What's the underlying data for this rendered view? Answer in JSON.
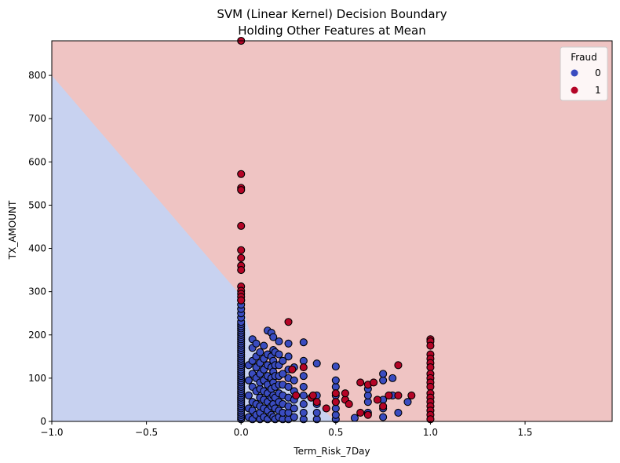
{
  "chart_data": {
    "type": "scatter",
    "title": "SVM (Linear Kernel) Decision Boundary",
    "subtitle": "Holding Other Features at Mean",
    "xlabel": "Term_Risk_7Day",
    "ylabel": "TX_AMOUNT",
    "xlim": [
      -1.0,
      1.96
    ],
    "ylim": [
      0,
      880
    ],
    "xticks": [
      -1.0,
      -0.5,
      0.0,
      0.5,
      1.0,
      1.5
    ],
    "xtick_labels": [
      "−1.0",
      "−0.5",
      "0.0",
      "0.5",
      "1.0",
      "1.5"
    ],
    "yticks": [
      0,
      100,
      200,
      300,
      400,
      500,
      600,
      700,
      800
    ],
    "ytick_labels": [
      "0",
      "100",
      "200",
      "300",
      "400",
      "500",
      "600",
      "700",
      "800"
    ],
    "grid": false,
    "decision_boundary": {
      "line": [
        [
          -1.0,
          800
        ],
        [
          0.0,
          290
        ],
        [
          0.03,
          230
        ],
        [
          0.05,
          200
        ],
        [
          0.1,
          140
        ],
        [
          0.2,
          80
        ],
        [
          0.3,
          70
        ],
        [
          0.35,
          65
        ],
        [
          0.45,
          20
        ],
        [
          0.5,
          0
        ]
      ],
      "class_0_region": "lower-left",
      "class_1_region": "upper-right",
      "class_0_color": "#c8d2f0",
      "class_1_color": "#efc4c3"
    },
    "legend": {
      "title": "Fraud",
      "placement": "top-right",
      "entries": [
        {
          "label": "0",
          "color": "#3a4cc0"
        },
        {
          "label": "1",
          "color": "#b40426"
        }
      ]
    },
    "series": [
      {
        "name": "0",
        "color": "#3a4cc0",
        "points": [
          [
            0.0,
            5
          ],
          [
            0.0,
            10
          ],
          [
            0.0,
            15
          ],
          [
            0.0,
            20
          ],
          [
            0.0,
            25
          ],
          [
            0.0,
            30
          ],
          [
            0.0,
            35
          ],
          [
            0.0,
            40
          ],
          [
            0.0,
            45
          ],
          [
            0.0,
            50
          ],
          [
            0.0,
            55
          ],
          [
            0.0,
            60
          ],
          [
            0.0,
            65
          ],
          [
            0.0,
            70
          ],
          [
            0.0,
            75
          ],
          [
            0.0,
            80
          ],
          [
            0.0,
            85
          ],
          [
            0.0,
            90
          ],
          [
            0.0,
            95
          ],
          [
            0.0,
            100
          ],
          [
            0.0,
            105
          ],
          [
            0.0,
            110
          ],
          [
            0.0,
            115
          ],
          [
            0.0,
            120
          ],
          [
            0.0,
            125
          ],
          [
            0.0,
            130
          ],
          [
            0.0,
            135
          ],
          [
            0.0,
            140
          ],
          [
            0.0,
            145
          ],
          [
            0.0,
            150
          ],
          [
            0.0,
            155
          ],
          [
            0.0,
            160
          ],
          [
            0.0,
            165
          ],
          [
            0.0,
            170
          ],
          [
            0.0,
            175
          ],
          [
            0.0,
            180
          ],
          [
            0.0,
            185
          ],
          [
            0.0,
            190
          ],
          [
            0.0,
            195
          ],
          [
            0.0,
            200
          ],
          [
            0.0,
            205
          ],
          [
            0.0,
            210
          ],
          [
            0.0,
            215
          ],
          [
            0.0,
            220
          ],
          [
            0.0,
            225
          ],
          [
            0.0,
            230
          ],
          [
            0.0,
            240
          ],
          [
            0.0,
            250
          ],
          [
            0.0,
            260
          ],
          [
            0.0,
            270
          ],
          [
            0.0,
            280
          ],
          [
            0.04,
            10
          ],
          [
            0.04,
            30
          ],
          [
            0.04,
            60
          ],
          [
            0.04,
            95
          ],
          [
            0.04,
            130
          ],
          [
            0.06,
            5
          ],
          [
            0.06,
            25
          ],
          [
            0.06,
            45
          ],
          [
            0.06,
            80
          ],
          [
            0.06,
            110
          ],
          [
            0.06,
            140
          ],
          [
            0.06,
            170
          ],
          [
            0.06,
            190
          ],
          [
            0.08,
            15
          ],
          [
            0.08,
            40
          ],
          [
            0.08,
            70
          ],
          [
            0.08,
            100
          ],
          [
            0.08,
            125
          ],
          [
            0.08,
            150
          ],
          [
            0.08,
            180
          ],
          [
            0.1,
            5
          ],
          [
            0.1,
            20
          ],
          [
            0.1,
            35
          ],
          [
            0.1,
            55
          ],
          [
            0.1,
            75
          ],
          [
            0.1,
            90
          ],
          [
            0.1,
            110
          ],
          [
            0.1,
            135
          ],
          [
            0.1,
            160
          ],
          [
            0.12,
            10
          ],
          [
            0.12,
            30
          ],
          [
            0.12,
            50
          ],
          [
            0.12,
            70
          ],
          [
            0.12,
            95
          ],
          [
            0.12,
            120
          ],
          [
            0.12,
            145
          ],
          [
            0.12,
            175
          ],
          [
            0.14,
            5
          ],
          [
            0.14,
            25
          ],
          [
            0.14,
            45
          ],
          [
            0.14,
            65
          ],
          [
            0.14,
            85
          ],
          [
            0.14,
            105
          ],
          [
            0.14,
            130
          ],
          [
            0.14,
            155
          ],
          [
            0.14,
            210
          ],
          [
            0.16,
            15
          ],
          [
            0.16,
            35
          ],
          [
            0.16,
            55
          ],
          [
            0.16,
            75
          ],
          [
            0.16,
            100
          ],
          [
            0.16,
            125
          ],
          [
            0.16,
            150
          ],
          [
            0.16,
            205
          ],
          [
            0.17,
            10
          ],
          [
            0.17,
            40
          ],
          [
            0.17,
            60
          ],
          [
            0.17,
            90
          ],
          [
            0.17,
            115
          ],
          [
            0.17,
            140
          ],
          [
            0.17,
            165
          ],
          [
            0.17,
            195
          ],
          [
            0.18,
            5
          ],
          [
            0.18,
            30
          ],
          [
            0.18,
            55
          ],
          [
            0.18,
            80
          ],
          [
            0.18,
            105
          ],
          [
            0.18,
            130
          ],
          [
            0.18,
            160
          ],
          [
            0.2,
            10
          ],
          [
            0.2,
            25
          ],
          [
            0.2,
            45
          ],
          [
            0.2,
            65
          ],
          [
            0.2,
            85
          ],
          [
            0.2,
            105
          ],
          [
            0.2,
            130
          ],
          [
            0.2,
            155
          ],
          [
            0.2,
            185
          ],
          [
            0.22,
            5
          ],
          [
            0.22,
            20
          ],
          [
            0.22,
            40
          ],
          [
            0.22,
            60
          ],
          [
            0.22,
            85
          ],
          [
            0.22,
            110
          ],
          [
            0.22,
            140
          ],
          [
            0.25,
            5
          ],
          [
            0.25,
            20
          ],
          [
            0.25,
            35
          ],
          [
            0.25,
            55
          ],
          [
            0.25,
            80
          ],
          [
            0.25,
            100
          ],
          [
            0.25,
            120
          ],
          [
            0.25,
            150
          ],
          [
            0.25,
            180
          ],
          [
            0.28,
            10
          ],
          [
            0.28,
            30
          ],
          [
            0.28,
            50
          ],
          [
            0.28,
            70
          ],
          [
            0.28,
            95
          ],
          [
            0.28,
            125
          ],
          [
            0.33,
            5
          ],
          [
            0.33,
            20
          ],
          [
            0.33,
            40
          ],
          [
            0.33,
            60
          ],
          [
            0.33,
            80
          ],
          [
            0.33,
            105
          ],
          [
            0.33,
            140
          ],
          [
            0.33,
            183
          ],
          [
            0.4,
            5
          ],
          [
            0.4,
            20
          ],
          [
            0.4,
            40
          ],
          [
            0.4,
            60
          ],
          [
            0.4,
            134
          ],
          [
            0.5,
            5
          ],
          [
            0.5,
            15
          ],
          [
            0.5,
            30
          ],
          [
            0.5,
            45
          ],
          [
            0.5,
            60
          ],
          [
            0.5,
            80
          ],
          [
            0.5,
            95
          ],
          [
            0.5,
            127
          ],
          [
            0.6,
            8
          ],
          [
            0.67,
            20
          ],
          [
            0.67,
            45
          ],
          [
            0.67,
            60
          ],
          [
            0.67,
            75
          ],
          [
            0.75,
            10
          ],
          [
            0.75,
            30
          ],
          [
            0.75,
            50
          ],
          [
            0.75,
            95
          ],
          [
            0.75,
            110
          ],
          [
            0.8,
            60
          ],
          [
            0.83,
            20
          ],
          [
            0.88,
            45
          ],
          [
            0.8,
            100
          ]
        ]
      },
      {
        "name": "1",
        "color": "#b40426",
        "points": [
          [
            0.0,
            880
          ],
          [
            0.0,
            572
          ],
          [
            0.0,
            540
          ],
          [
            0.0,
            535
          ],
          [
            0.0,
            452
          ],
          [
            0.0,
            396
          ],
          [
            0.0,
            378
          ],
          [
            0.0,
            360
          ],
          [
            0.0,
            350
          ],
          [
            0.0,
            312
          ],
          [
            0.0,
            302
          ],
          [
            0.0,
            295
          ],
          [
            0.0,
            288
          ],
          [
            0.0,
            280
          ],
          [
            0.25,
            230
          ],
          [
            0.27,
            120
          ],
          [
            0.29,
            60
          ],
          [
            0.33,
            125
          ],
          [
            0.37,
            55
          ],
          [
            0.38,
            60
          ],
          [
            0.4,
            45
          ],
          [
            0.45,
            30
          ],
          [
            0.5,
            65
          ],
          [
            0.5,
            45
          ],
          [
            0.55,
            50
          ],
          [
            0.55,
            65
          ],
          [
            0.57,
            40
          ],
          [
            0.63,
            20
          ],
          [
            0.63,
            90
          ],
          [
            0.67,
            85
          ],
          [
            0.67,
            15
          ],
          [
            0.7,
            90
          ],
          [
            0.72,
            50
          ],
          [
            0.75,
            35
          ],
          [
            0.78,
            60
          ],
          [
            0.83,
            130
          ],
          [
            0.83,
            60
          ],
          [
            0.9,
            60
          ],
          [
            1.0,
            190
          ],
          [
            1.0,
            185
          ],
          [
            1.0,
            175
          ],
          [
            1.0,
            155
          ],
          [
            1.0,
            145
          ],
          [
            1.0,
            135
          ],
          [
            1.0,
            125
          ],
          [
            1.0,
            110
          ],
          [
            1.0,
            100
          ],
          [
            1.0,
            90
          ],
          [
            1.0,
            80
          ],
          [
            1.0,
            65
          ],
          [
            1.0,
            55
          ],
          [
            1.0,
            45
          ],
          [
            1.0,
            35
          ],
          [
            1.0,
            25
          ],
          [
            1.0,
            15
          ],
          [
            1.0,
            5
          ]
        ]
      }
    ]
  }
}
